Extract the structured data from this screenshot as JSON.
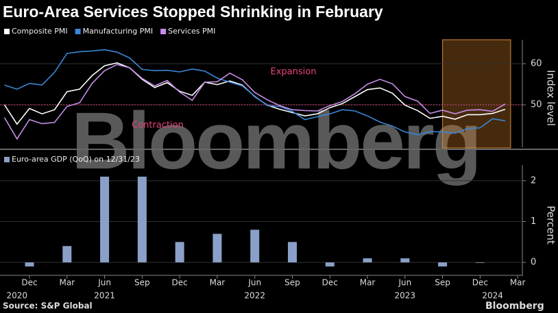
{
  "title": "Euro-Area Services Stopped Shrinking in February",
  "source": "Source: S&P Global",
  "logo": "Bloomberg",
  "watermark": "Bloomberg",
  "chart_data": [
    {
      "type": "line",
      "x": [
        "2020-10",
        "2020-11",
        "2020-12",
        "2021-01",
        "2021-02",
        "2021-03",
        "2021-04",
        "2021-05",
        "2021-06",
        "2021-07",
        "2021-08",
        "2021-09",
        "2021-10",
        "2021-11",
        "2021-12",
        "2022-01",
        "2022-02",
        "2022-03",
        "2022-04",
        "2022-05",
        "2022-06",
        "2022-07",
        "2022-08",
        "2022-09",
        "2022-10",
        "2022-11",
        "2022-12",
        "2023-01",
        "2023-02",
        "2023-03",
        "2023-04",
        "2023-05",
        "2023-06",
        "2023-07",
        "2023-08",
        "2023-09",
        "2023-10",
        "2023-11",
        "2023-12",
        "2024-01",
        "2024-02"
      ],
      "series": [
        {
          "name": "Composite PMI",
          "color": "#ffffff",
          "values": [
            50.0,
            45.3,
            49.1,
            47.8,
            48.8,
            53.2,
            53.8,
            57.1,
            59.5,
            60.2,
            59.0,
            56.2,
            54.2,
            55.4,
            53.3,
            52.3,
            55.5,
            54.9,
            55.8,
            54.8,
            52.0,
            49.9,
            48.9,
            48.1,
            47.3,
            47.8,
            49.3,
            50.3,
            52.0,
            53.7,
            54.1,
            52.8,
            49.9,
            48.6,
            46.7,
            47.2,
            46.5,
            47.6,
            47.6,
            47.9,
            48.9
          ]
        },
        {
          "name": "Manufacturing PMI",
          "color": "#3a86d6",
          "values": [
            54.8,
            53.8,
            55.2,
            54.8,
            57.9,
            62.5,
            62.9,
            63.1,
            63.4,
            62.8,
            61.4,
            58.6,
            58.3,
            58.4,
            58.0,
            58.7,
            58.2,
            56.5,
            55.5,
            54.6,
            52.1,
            49.8,
            49.6,
            48.4,
            46.4,
            47.1,
            47.8,
            48.8,
            48.5,
            47.3,
            45.8,
            44.8,
            43.4,
            42.7,
            43.5,
            43.4,
            43.1,
            44.2,
            44.4,
            46.6,
            46.1
          ]
        },
        {
          "name": "Services PMI",
          "color": "#c78ee8",
          "values": [
            46.9,
            41.7,
            46.4,
            45.4,
            45.7,
            49.6,
            50.5,
            55.2,
            58.3,
            59.8,
            59.0,
            56.4,
            54.6,
            55.9,
            53.1,
            51.1,
            55.5,
            55.6,
            57.7,
            56.1,
            53.0,
            51.2,
            49.8,
            48.8,
            48.6,
            48.5,
            49.8,
            50.8,
            52.7,
            55.0,
            56.2,
            55.1,
            52.0,
            50.9,
            47.9,
            48.7,
            47.8,
            48.7,
            48.8,
            48.4,
            50.2
          ]
        }
      ],
      "ylim": [
        40,
        65
      ],
      "yticks": [
        50,
        60
      ],
      "ylabel": "Index level",
      "grid": true,
      "reference_line": 50,
      "highlight": [
        "2023-09",
        "2024-02"
      ],
      "annotations": [
        {
          "text": "Expansion",
          "value": 58
        },
        {
          "text": "Contraction",
          "value": 45
        }
      ]
    },
    {
      "type": "bar",
      "x": [
        "2020-12",
        "2021-03",
        "2021-06",
        "2021-09",
        "2021-12",
        "2022-03",
        "2022-06",
        "2022-09",
        "2022-12",
        "2023-03",
        "2023-06",
        "2023-09",
        "2023-12"
      ],
      "series": [
        {
          "name": "Euro-area GDP (QoQ) on 12/31/23",
          "color": "#8aa0c8",
          "values": [
            -0.1,
            0.4,
            2.1,
            2.1,
            0.5,
            0.7,
            0.8,
            0.5,
            -0.1,
            0.1,
            0.1,
            -0.1,
            0.0
          ]
        }
      ],
      "ylim": [
        -0.3,
        2.3
      ],
      "yticks": [
        0,
        1,
        2
      ],
      "ylabel": "Percent",
      "grid": true,
      "xticks": [
        {
          "value": "2020-12",
          "label": "Dec"
        },
        {
          "value": "2021-03",
          "label": "Mar"
        },
        {
          "value": "2021-06",
          "label": "Jun"
        },
        {
          "value": "2021-09",
          "label": "Sep"
        },
        {
          "value": "2021-12",
          "label": "Dec"
        },
        {
          "value": "2022-03",
          "label": "Mar"
        },
        {
          "value": "2022-06",
          "label": "Jun"
        },
        {
          "value": "2022-09",
          "label": "Sep"
        },
        {
          "value": "2022-12",
          "label": "Dec"
        },
        {
          "value": "2023-03",
          "label": "Mar"
        },
        {
          "value": "2023-06",
          "label": "Jun"
        },
        {
          "value": "2023-09",
          "label": "Sep"
        },
        {
          "value": "2023-12",
          "label": "Dec"
        },
        {
          "value": "2024-03",
          "label": "Mar"
        }
      ],
      "year_labels": [
        {
          "value": "2020-11",
          "label": "2020"
        },
        {
          "value": "2021-06",
          "label": "2021"
        },
        {
          "value": "2022-06",
          "label": "2022"
        },
        {
          "value": "2023-06",
          "label": "2023"
        },
        {
          "value": "2024-01",
          "label": "2024"
        }
      ]
    }
  ]
}
